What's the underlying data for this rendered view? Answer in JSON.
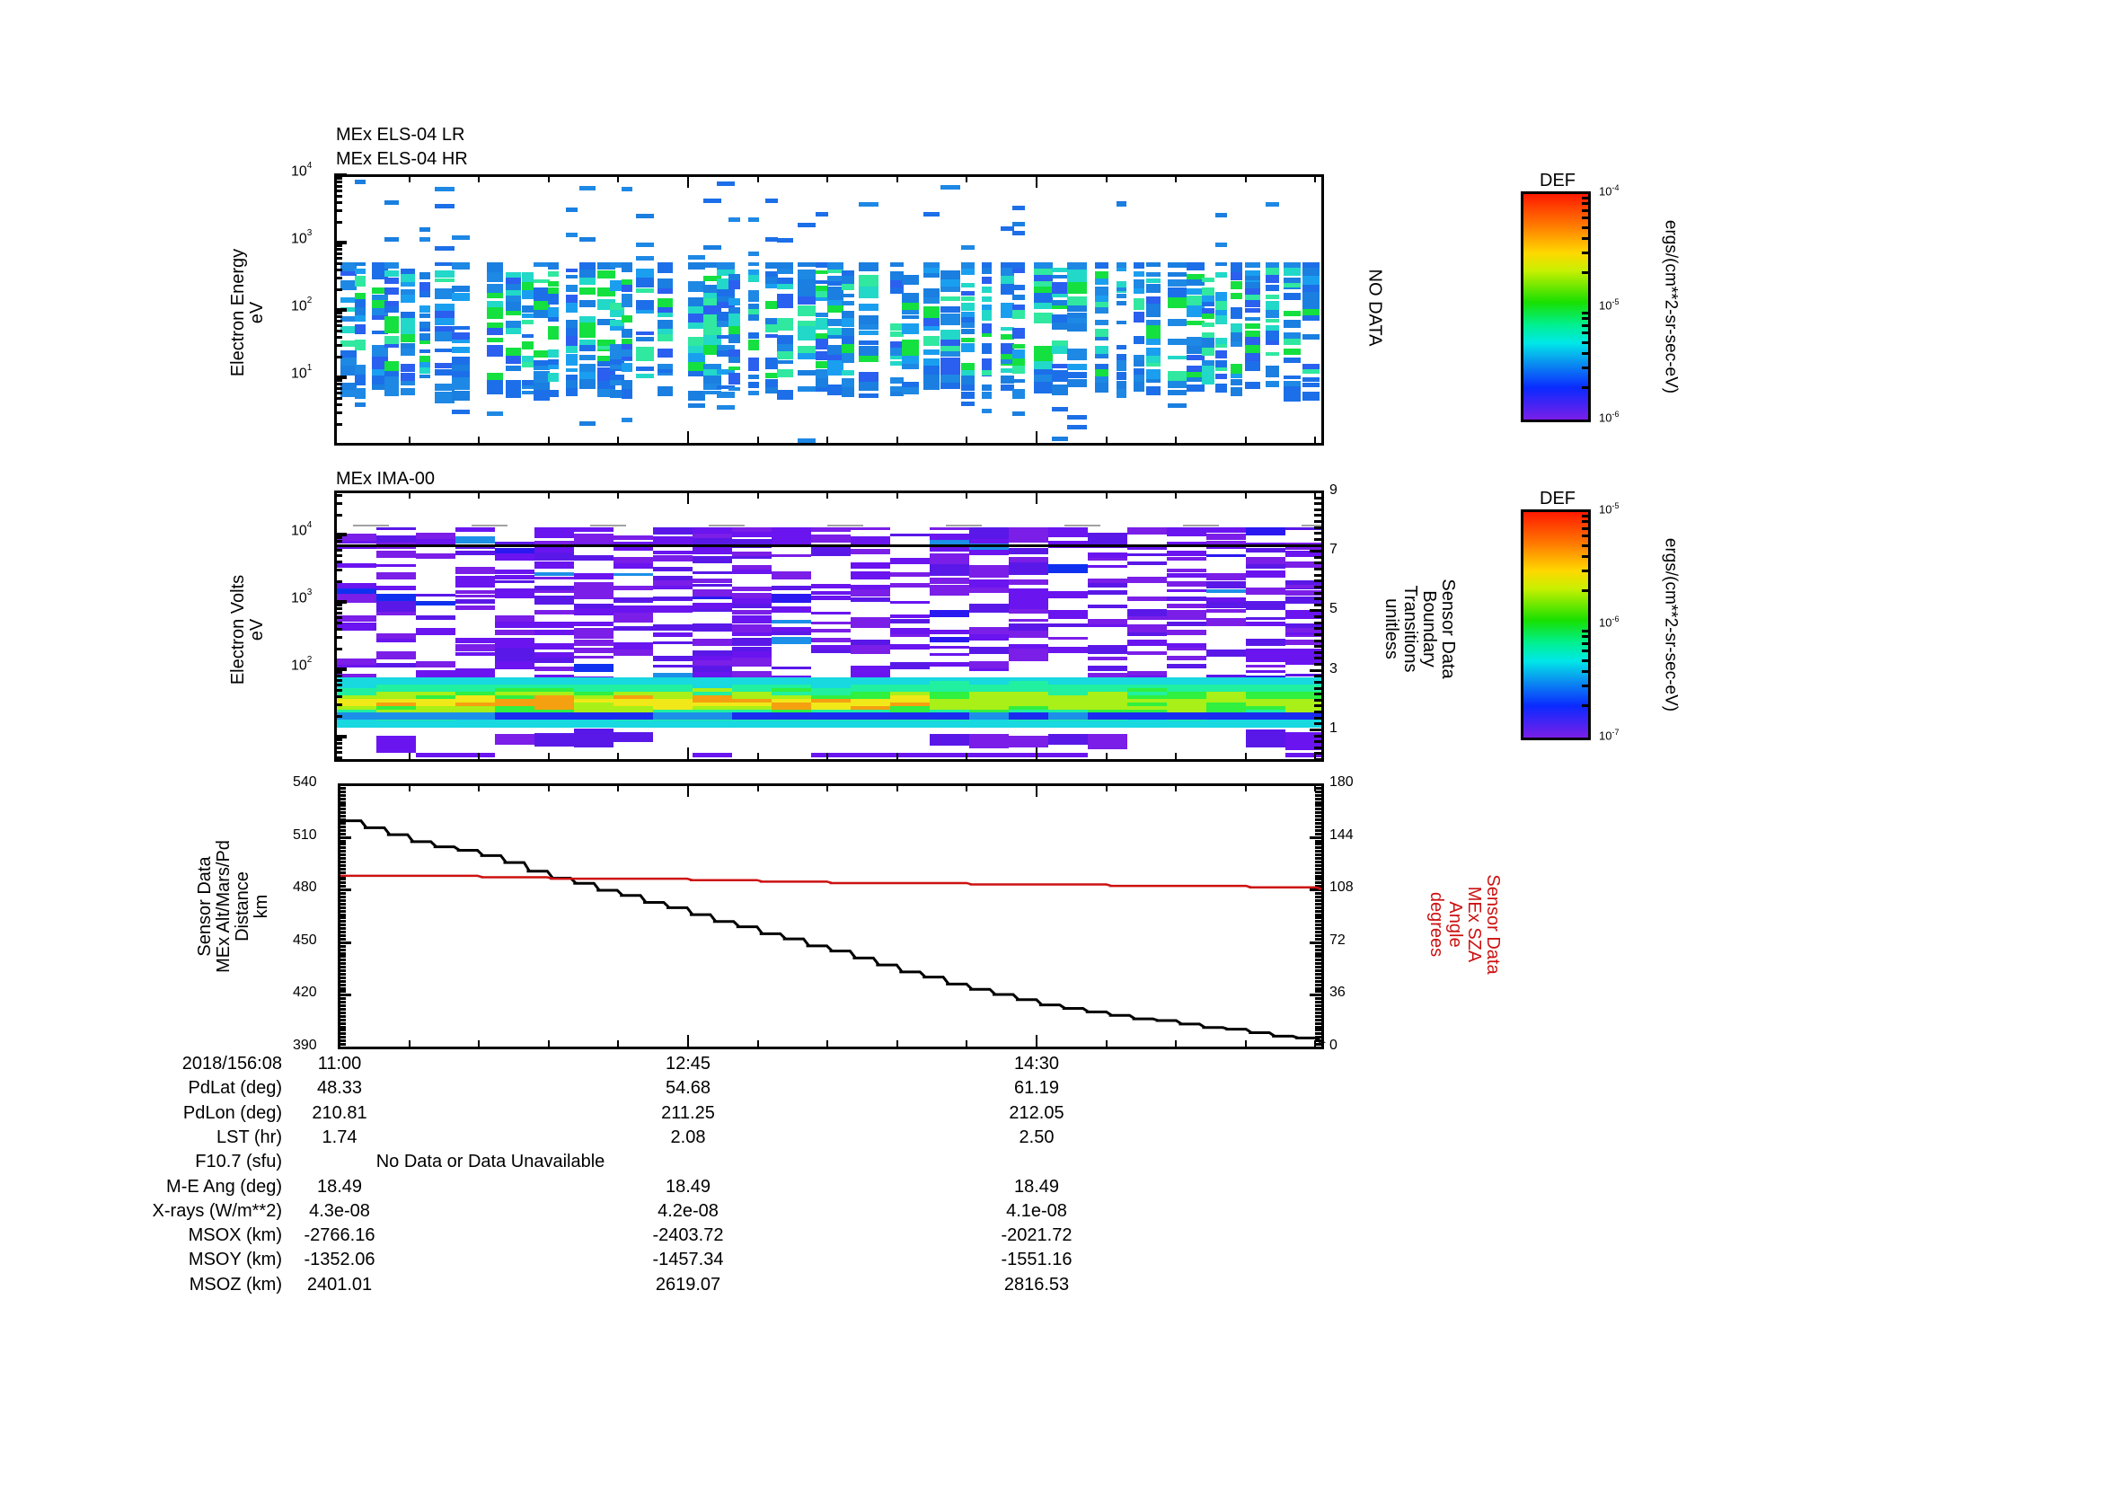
{
  "chart_data": [
    {
      "type": "heatmap",
      "title": [
        "MEx ELS-04 LR",
        "MEx ELS-04 HR"
      ],
      "ylabel": [
        "Electron Energy",
        "eV"
      ],
      "yscale": "log",
      "yticks": [
        "10^1",
        "10^2",
        "10^3",
        "10^4"
      ],
      "ylim": [
        2,
        10000
      ],
      "right_label": "NO DATA",
      "colorbar": {
        "title": "DEF",
        "ticks": [
          "10^-4",
          "10^-5",
          "10^-6"
        ],
        "range": [
          1e-06,
          0.0001
        ],
        "unit": "ergs/(cm**2-sr-sec-eV)"
      },
      "description": "Sparse electron spectrogram; most flux between ~3 eV and ~200 eV, scattered points up to 10^4 eV; values mostly 10^-5.5 to 10^-5 (blue/cyan/green)."
    },
    {
      "type": "heatmap",
      "title": "MEx IMA-00",
      "ylabel": [
        "Electron Volts",
        "eV"
      ],
      "yscale": "log",
      "yticks": [
        "10^2",
        "10^3",
        "10^4"
      ],
      "right_axis": {
        "label": [
          "Sensor Data",
          "Boundary",
          "Transitions",
          "unitless"
        ],
        "ticks": [
          1,
          3,
          5,
          7,
          9
        ],
        "range": [
          0,
          9
        ],
        "boundary_value": 7
      },
      "colorbar": {
        "title": "DEF",
        "ticks": [
          "10^-5",
          "10^-6",
          "10^-7"
        ],
        "range": [
          1e-07,
          1e-05
        ],
        "unit": "ergs/(cm**2-sr-sec-eV)"
      },
      "description": "Ion spectrogram; intense band (green/yellow/orange) around 20-50 eV throughout; sparse purple/blue low-flux bins above 10^2 eV; horizontal boundary line at 7."
    },
    {
      "type": "line",
      "ylabel_left": [
        "Sensor Data",
        "MEx Alt/Mars/Pd",
        "Distance",
        "km"
      ],
      "ylabel_right": [
        "Sensor Data",
        "MEx SZA",
        "Angle",
        "degrees"
      ],
      "ylim_left": [
        390,
        540
      ],
      "yticks_left": [
        390,
        420,
        450,
        480,
        510,
        540
      ],
      "ylim_right": [
        0,
        180
      ],
      "yticks_right": [
        0,
        36,
        72,
        108,
        144,
        180
      ],
      "x": [
        "11:00",
        "11:21",
        "11:42",
        "12:03",
        "12:24",
        "12:45",
        "13:06",
        "13:27",
        "13:48",
        "14:09",
        "14:30",
        "14:51",
        "15:12",
        "15:33",
        "15:54"
      ],
      "series": [
        {
          "name": "MEx Alt/Mars/Pd Distance (km)",
          "color": "#000000",
          "axis": "left",
          "values": [
            520,
            508,
            500,
            487,
            477,
            466,
            455,
            445,
            433,
            423,
            414,
            408,
            403,
            398,
            393
          ]
        },
        {
          "name": "MEx SZA Angle (degrees)",
          "color": "#cc1111",
          "axis": "right",
          "values": [
            118,
            118,
            117,
            116,
            116,
            115,
            114,
            113,
            113,
            112,
            112,
            111,
            111,
            110,
            109
          ]
        }
      ]
    }
  ],
  "panels": {
    "top": {
      "title_line1": "MEx ELS-04 LR",
      "title_line2": "MEx ELS-04 HR",
      "ylabel_line1": "Electron Energy",
      "ylabel_line2": "eV",
      "no_data": "NO DATA",
      "yticks": [
        {
          "base": "10",
          "exp": "4"
        },
        {
          "base": "10",
          "exp": "3"
        },
        {
          "base": "10",
          "exp": "2"
        },
        {
          "base": "10",
          "exp": "1"
        }
      ]
    },
    "middle": {
      "title": "MEx IMA-00",
      "ylabel_line1": "Electron Volts",
      "ylabel_line2": "eV",
      "yticks": [
        {
          "base": "10",
          "exp": "4"
        },
        {
          "base": "10",
          "exp": "3"
        },
        {
          "base": "10",
          "exp": "2"
        }
      ],
      "right_ticks": [
        "9",
        "7",
        "5",
        "3",
        "1"
      ],
      "right_label": [
        "Sensor Data",
        "Boundary",
        "Transitions",
        "unitless"
      ]
    },
    "bottom": {
      "left_ticks": [
        "540",
        "510",
        "480",
        "450",
        "420",
        "390"
      ],
      "right_ticks": [
        "180",
        "144",
        "108",
        "72",
        "36",
        "0"
      ],
      "left_label": [
        "Sensor Data",
        "MEx Alt/Mars/Pd",
        "Distance",
        "km"
      ],
      "right_label": [
        "Sensor Data",
        "MEx SZA",
        "Angle",
        "degrees"
      ],
      "alt_color": "#000000",
      "sza_color": "#cc1111"
    }
  },
  "colorbars": [
    {
      "title": "DEF",
      "top": {
        "base": "10",
        "exp": "-4"
      },
      "mid": {
        "base": "10",
        "exp": "-5"
      },
      "bot": {
        "base": "10",
        "exp": "-6"
      },
      "unit": "ergs/(cm**2-sr-sec-eV)"
    },
    {
      "title": "DEF",
      "top": {
        "base": "10",
        "exp": "-5"
      },
      "mid": {
        "base": "10",
        "exp": "-6"
      },
      "bot": {
        "base": "10",
        "exp": "-7"
      },
      "unit": "ergs/(cm**2-sr-sec-eV)"
    }
  ],
  "info_table": {
    "rows": [
      {
        "label": "2018/156:08",
        "values": [
          "11:00",
          "12:45",
          "14:30"
        ]
      },
      {
        "label": "PdLat (deg)",
        "values": [
          "48.33",
          "54.68",
          "61.19"
        ]
      },
      {
        "label": "PdLon (deg)",
        "values": [
          "210.81",
          "211.25",
          "212.05"
        ]
      },
      {
        "label": "LST (hr)",
        "values": [
          "1.74",
          "2.08",
          "2.50"
        ]
      },
      {
        "label": "F10.7 (sfu)",
        "values": [
          "No Data or Data Unavailable"
        ]
      },
      {
        "label": "M-E Ang (deg)",
        "values": [
          "18.49",
          "18.49",
          "18.49"
        ]
      },
      {
        "label": "X-rays (W/m**2)",
        "values": [
          "4.3e-08",
          "4.2e-08",
          "4.1e-08"
        ]
      },
      {
        "label": "MSOX (km)",
        "values": [
          "-2766.16",
          "-2403.72",
          "-2021.72"
        ]
      },
      {
        "label": "MSOY (km)",
        "values": [
          "-1352.06",
          "-1457.34",
          "-1551.16"
        ]
      },
      {
        "label": "MSOZ (km)",
        "values": [
          "2401.01",
          "2619.07",
          "2816.53"
        ]
      }
    ]
  }
}
